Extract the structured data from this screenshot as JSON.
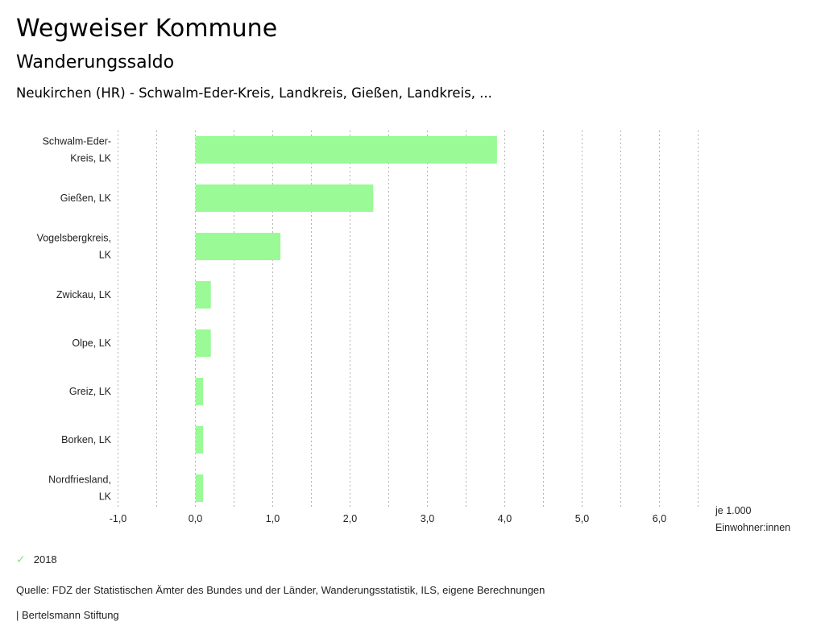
{
  "header": {
    "title": "Wegweiser Kommune",
    "subtitle": "Wanderungssaldo",
    "region": "Neukirchen (HR) - Schwalm-Eder-Kreis, Landkreis, Gießen, Landkreis, ..."
  },
  "chart_data": {
    "type": "bar",
    "orientation": "horizontal",
    "title": "Wanderungssaldo",
    "categories": [
      [
        "Schwalm-Eder-",
        "Kreis, LK"
      ],
      [
        "Gießen, LK"
      ],
      [
        "Vogelsbergkreis,",
        "LK"
      ],
      [
        "Zwickau, LK"
      ],
      [
        "Olpe, LK"
      ],
      [
        "Greiz, LK"
      ],
      [
        "Borken, LK"
      ],
      [
        "Nordfriesland,",
        "LK"
      ]
    ],
    "series": [
      {
        "name": "2018",
        "color": "#9afa96",
        "values": [
          3.9,
          2.3,
          1.1,
          0.2,
          0.2,
          0.1,
          0.1,
          0.1
        ]
      }
    ],
    "xlim": [
      -1.0,
      6.5
    ],
    "xticks": [
      -1.0,
      0.0,
      1.0,
      2.0,
      3.0,
      4.0,
      5.0,
      6.0
    ],
    "xtick_labels": [
      "-1,0",
      "0,0",
      "1,0",
      "2,0",
      "3,0",
      "4,0",
      "5,0",
      "6,0"
    ],
    "gridlines": [
      -1.0,
      -0.5,
      0.0,
      0.5,
      1.0,
      1.5,
      2.0,
      2.5,
      3.0,
      3.5,
      4.0,
      4.5,
      5.0,
      5.5,
      6.0,
      6.5
    ],
    "xlabel": [
      "je 1.000",
      "Einwohner:innen"
    ],
    "ylabel": "",
    "grid": true,
    "legend": "bottom-left"
  },
  "legend": {
    "icon": "check-icon",
    "label": "2018"
  },
  "footer": {
    "source": "Quelle: FDZ der Statistischen Ämter des Bundes und der Länder, Wanderungsstatistik, ILS, eigene Berechnungen",
    "brand": "| Bertelsmann Stiftung"
  }
}
